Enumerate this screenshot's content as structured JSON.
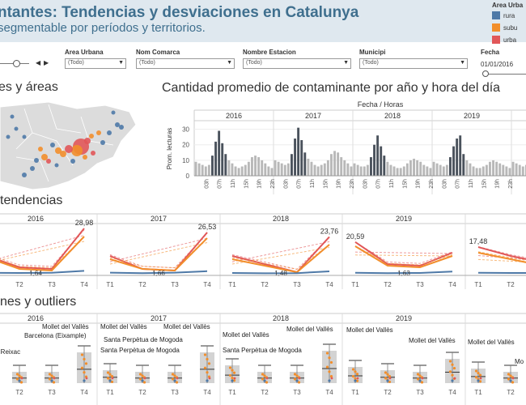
{
  "header": {
    "title": "ntantes: Tendencias y desviaciones en Catalunya",
    "subtitle": "segmentable por períodos y territorios."
  },
  "legend": {
    "title": "Area Urba",
    "items": [
      {
        "label": "rura",
        "color": "#4e79a7"
      },
      {
        "label": "subu",
        "color": "#f28e2b"
      },
      {
        "label": "urba",
        "color": "#e15759"
      }
    ]
  },
  "filters": [
    {
      "label": "Area Urbana",
      "value": "(Todo)"
    },
    {
      "label": "Nom Comarca",
      "value": "(Todo)"
    },
    {
      "label": "Nombre Estacion",
      "value": "(Todo)"
    },
    {
      "label": "Municipi",
      "value": "(Todo)"
    },
    {
      "label": "Fecha",
      "value": "01/01/2016"
    }
  ],
  "sections": {
    "map_title": "es y áreas",
    "bar_title": "Cantidad promedio de contaminante por año y hora del día",
    "trend_title": "tendencias",
    "box_title": "nes y outliers"
  },
  "colors": {
    "rural": "#4e79a7",
    "suburbano": "#f28e2b",
    "urbano": "#e15759",
    "bar_dark": "#4a525c",
    "bar_light": "#b8b8b8",
    "header_bg": "#dfe8ef",
    "title_color": "#3f6f8e"
  },
  "chart_data": [
    {
      "type": "bar",
      "title": "Cantidad promedio de contaminante por año y hora del día",
      "super_label": "Fecha / Horas",
      "ylabel": "Prom. lecturas",
      "ylim": [
        0,
        35
      ],
      "yticks": [
        0,
        10,
        20,
        30
      ],
      "years": [
        "2016",
        "2017",
        "2018",
        "2019"
      ],
      "hour_ticks": [
        "03h",
        "07h",
        "11h",
        "15h",
        "19h",
        "23h"
      ],
      "highlight_hours": [
        5,
        6,
        7,
        8,
        9
      ],
      "hours": [
        0,
        1,
        2,
        3,
        4,
        5,
        6,
        7,
        8,
        9,
        10,
        11,
        12,
        13,
        14,
        15,
        16,
        17,
        18,
        19,
        20,
        21,
        22,
        23
      ],
      "series": [
        {
          "name": "2016",
          "values": [
            9,
            8,
            7,
            6,
            7,
            13,
            22,
            29,
            21,
            14,
            10,
            8,
            6,
            5,
            6,
            7,
            9,
            12,
            13,
            12,
            10,
            8,
            6,
            5
          ]
        },
        {
          "name": "2017",
          "values": [
            10,
            9,
            8,
            7,
            8,
            14,
            24,
            31,
            23,
            15,
            11,
            9,
            7,
            6,
            7,
            8,
            10,
            14,
            16,
            15,
            12,
            10,
            8,
            6
          ]
        },
        {
          "name": "2018",
          "values": [
            8,
            7,
            6,
            6,
            7,
            12,
            20,
            26,
            19,
            13,
            9,
            7,
            6,
            5,
            5,
            6,
            8,
            10,
            11,
            10,
            9,
            7,
            6,
            5
          ]
        },
        {
          "name": "2019",
          "values": [
            9,
            8,
            7,
            6,
            7,
            12,
            19,
            24,
            26,
            14,
            10,
            8,
            6,
            5,
            5,
            6,
            7,
            9,
            10,
            9,
            8,
            7,
            6,
            5
          ]
        }
      ]
    },
    {
      "type": "line",
      "title": "tendencias",
      "years": [
        "2016",
        "2017",
        "2018",
        "2019",
        ""
      ],
      "categories": [
        "T1",
        "T2",
        "T3",
        "T4"
      ],
      "ylim": [
        0,
        30
      ],
      "max_labels": [
        "28,98",
        "26,53",
        "23,76",
        "20,59",
        "17,48"
      ],
      "min_labels": [
        "1,64",
        "1,66",
        "1,48",
        "1,63",
        ""
      ],
      "series": [
        {
          "name": "urbano",
          "color": "#e15759",
          "panels": [
            [
              12,
              5,
              4,
              28.98
            ],
            [
              12,
              4,
              3,
              26.53
            ],
            [
              12,
              7,
              2,
              23.76
            ],
            [
              20.59,
              7,
              6,
              14
            ],
            [
              17.48,
              12,
              8,
              6
            ]
          ]
        },
        {
          "name": "suburbano",
          "color": "#f28e2b",
          "panels": [
            [
              11,
              4,
              3,
              24
            ],
            [
              10,
              4,
              3,
              23
            ],
            [
              10,
              6,
              2,
              19
            ],
            [
              18,
              6,
              5,
              12
            ],
            [
              14,
              10,
              6,
              5
            ]
          ]
        },
        {
          "name": "rural",
          "color": "#4e79a7",
          "panels": [
            [
              1.64,
              1.5,
              1.6,
              2.8
            ],
            [
              1.66,
              1.4,
              1.7,
              2.6
            ],
            [
              1.48,
              1.3,
              1.4,
              2.5
            ],
            [
              1.63,
              1.4,
              1.5,
              2.4
            ],
            [
              1.6,
              1.5,
              1.5,
              1.8
            ]
          ]
        }
      ]
    },
    {
      "type": "scatter",
      "title": "nes y outliers",
      "years": [
        "2016",
        "2017",
        "2018",
        "2019",
        ""
      ],
      "categories": [
        "T1",
        "T2",
        "T3",
        "T4"
      ],
      "outlier_labels": [
        "Mollet del Vallès",
        "Barcelona (Eixample)",
        "a i Reixac",
        "Mollet del Vallès",
        "Mollet del Vallès",
        "Santa Perpètua de Mogoda",
        "Santa Perpètua de Mogoda",
        "Mollet del Vallès",
        "Mollet del Vallès",
        "Santa Perpètua de Mogoda",
        "Mollet del Vallès",
        "Mollet del Vallès",
        "Mollet del Vallès",
        "Mo"
      ]
    }
  ]
}
